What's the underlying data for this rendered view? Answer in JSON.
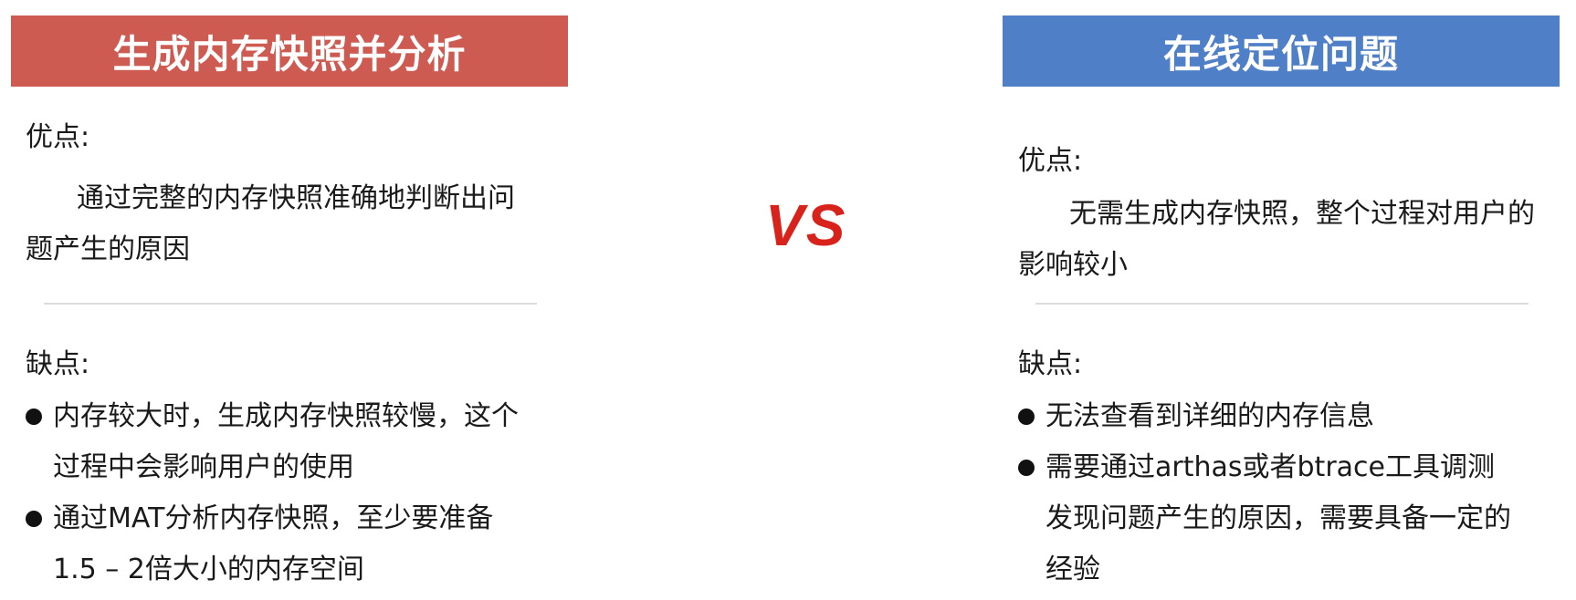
{
  "colors": {
    "left_banner": "#cd5b51",
    "right_banner": "#4f7fc7",
    "vs_color": "#d8231c"
  },
  "left": {
    "title": "生成内存快照并分析",
    "pros_label": "优点:",
    "pros_lines": [
      "通过完整的内存快照准确地判断出问",
      "题产生的原因"
    ],
    "cons_label": "缺点:",
    "cons": [
      {
        "lines": [
          "内存较大时，生成内存快照较慢，这个",
          "过程中会影响用户的使用"
        ]
      },
      {
        "lines": [
          "通过MAT分析内存快照，至少要准备",
          "1.5 – 2倍大小的内存空间"
        ]
      }
    ]
  },
  "vs": "VS",
  "right": {
    "title": "在线定位问题",
    "pros_label": "优点:",
    "pros_lines": [
      "无需生成内存快照，整个过程对用户的",
      "影响较小"
    ],
    "cons_label": "缺点:",
    "cons": [
      {
        "lines": [
          "无法查看到详细的内存信息"
        ]
      },
      {
        "lines": [
          "需要通过arthas或者btrace工具调测",
          "发现问题产生的原因，需要具备一定的",
          "经验"
        ]
      }
    ]
  }
}
